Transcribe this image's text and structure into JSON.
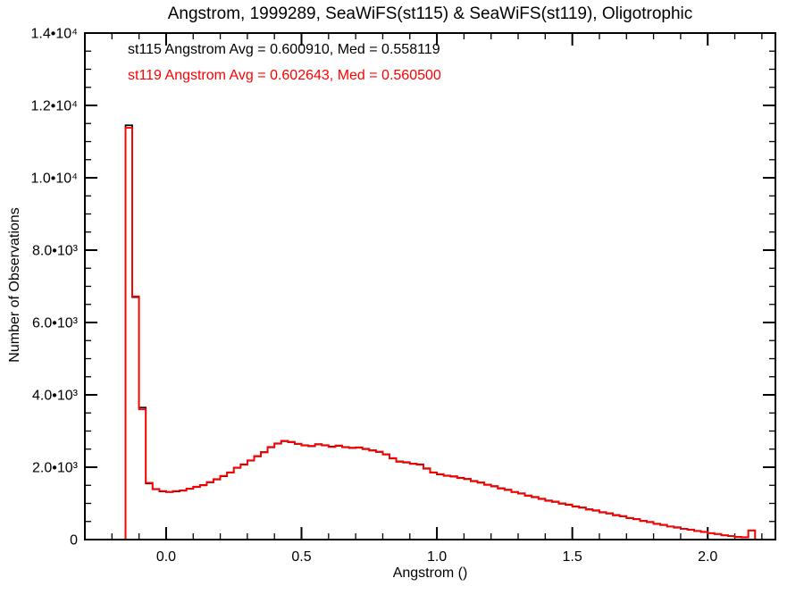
{
  "title": "Angstrom, 1999289, SeaWiFS(st115) & SeaWiFS(st119), Oligotrophic",
  "legend": {
    "st115": "st115 Angstrom Avg = 0.600910, Med = 0.558119",
    "st119": "st119 Angstrom Avg = 0.602643, Med = 0.560500"
  },
  "chart_data": {
    "type": "bar",
    "subtype": "step-histogram",
    "title": "Angstrom, 1999289, SeaWiFS(st115) & SeaWiFS(st119), Oligotrophic",
    "xlabel": "Angstrom ()",
    "ylabel": "Number of Observations",
    "grid": false,
    "legend_position": "top-left-inside",
    "background_color": "#ffffff",
    "frame_color": "#000000",
    "x_axis": {
      "label": "Angstrom ()",
      "min": -0.3,
      "max": 2.25,
      "major_ticks": [
        0.0,
        0.5,
        1.0,
        1.5,
        2.0
      ],
      "major_labels": [
        "0.0",
        "0.5",
        "1.0",
        "1.5",
        "2.0"
      ],
      "minor_step": 0.1,
      "major_spacing": 0.5
    },
    "y_axis": {
      "label": "Number of Observations",
      "min": 0,
      "max": 14000,
      "major_ticks": [
        0,
        2000,
        4000,
        6000,
        8000,
        10000,
        12000,
        14000
      ],
      "major_labels": [
        "0",
        "2.0•10³",
        "4.0•10³",
        "6.0•10³",
        "8.0•10³",
        "1.0•10⁴",
        "1.2•10⁴",
        "1.4•10⁴"
      ],
      "minor_step": 500,
      "major_spacing": 2000
    },
    "bin_start": -0.3,
    "bin_width": 0.025,
    "series": [
      {
        "name": "st115",
        "color": "#000000",
        "avg": 0.60091,
        "med": 0.558119,
        "counts": [
          0,
          0,
          0,
          0,
          0,
          0,
          11450,
          6700,
          3650,
          1550,
          1400,
          1330,
          1310,
          1330,
          1360,
          1400,
          1450,
          1510,
          1580,
          1660,
          1750,
          1860,
          1980,
          2080,
          2180,
          2300,
          2420,
          2550,
          2650,
          2720,
          2700,
          2640,
          2610,
          2580,
          2640,
          2600,
          2570,
          2590,
          2560,
          2530,
          2550,
          2500,
          2470,
          2420,
          2360,
          2240,
          2160,
          2130,
          2100,
          2080,
          1960,
          1860,
          1800,
          1770,
          1740,
          1710,
          1670,
          1620,
          1570,
          1520,
          1470,
          1420,
          1370,
          1320,
          1270,
          1220,
          1170,
          1120,
          1080,
          1040,
          1000,
          960,
          920,
          880,
          840,
          800,
          760,
          720,
          680,
          640,
          600,
          560,
          520,
          480,
          440,
          400,
          365,
          330,
          300,
          270,
          240,
          210,
          180,
          150,
          120,
          95,
          75,
          60,
          250,
          0,
          0,
          0
        ]
      },
      {
        "name": "st119",
        "color": "#ff0000",
        "avg": 0.602643,
        "med": 0.5605,
        "counts": [
          0,
          0,
          0,
          0,
          0,
          0,
          11380,
          6720,
          3600,
          1570,
          1390,
          1340,
          1320,
          1340,
          1350,
          1410,
          1460,
          1500,
          1590,
          1670,
          1760,
          1850,
          1990,
          2070,
          2190,
          2310,
          2410,
          2560,
          2660,
          2730,
          2690,
          2650,
          2600,
          2590,
          2630,
          2610,
          2560,
          2600,
          2550,
          2540,
          2540,
          2510,
          2460,
          2430,
          2350,
          2250,
          2150,
          2140,
          2090,
          2070,
          1970,
          1850,
          1810,
          1760,
          1750,
          1700,
          1680,
          1610,
          1580,
          1510,
          1480,
          1410,
          1380,
          1310,
          1280,
          1210,
          1180,
          1130,
          1070,
          1050,
          990,
          970,
          910,
          890,
          830,
          810,
          750,
          730,
          670,
          650,
          590,
          570,
          510,
          490,
          430,
          410,
          360,
          340,
          295,
          275,
          235,
          215,
          175,
          155,
          115,
          100,
          70,
          65,
          255,
          0,
          0,
          0
        ]
      }
    ]
  }
}
